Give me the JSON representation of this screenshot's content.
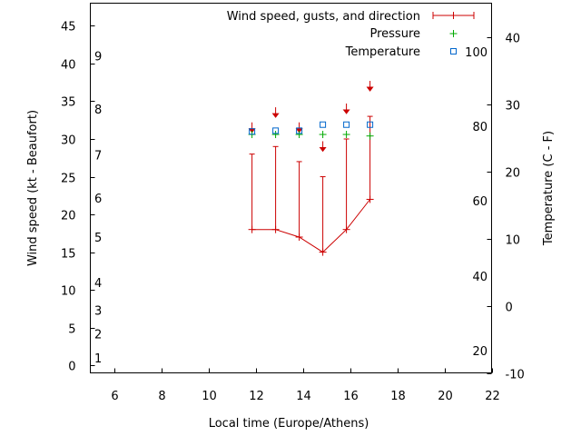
{
  "chart_data": {
    "type": "line",
    "xlabel": "Local time (Europe/Athens)",
    "ylabel": "Wind speed (kt - Beaufort)",
    "y2label": "Temperature (C - F)",
    "xlim": [
      5,
      22
    ],
    "ylim": [
      -1,
      48
    ],
    "y2lim": [
      -10,
      45
    ],
    "x_ticks": [
      6,
      8,
      10,
      12,
      14,
      16,
      18,
      20,
      22
    ],
    "y_ticks": [
      0,
      5,
      10,
      15,
      20,
      25,
      30,
      35,
      40,
      45
    ],
    "y2_ticks": [
      -10,
      0,
      10,
      20,
      30,
      40
    ],
    "beaufort_labels": [
      {
        "label": "1",
        "y": 1.0
      },
      {
        "label": "2",
        "y": 4.2
      },
      {
        "label": "3",
        "y": 7.3
      },
      {
        "label": "4",
        "y": 11.0
      },
      {
        "label": "5",
        "y": 17.0
      },
      {
        "label": "6",
        "y": 22.2
      },
      {
        "label": "7",
        "y": 27.9
      },
      {
        "label": "8",
        "y": 34.0
      },
      {
        "label": "9",
        "y": 41.0
      }
    ],
    "fahrenheit_labels": [
      {
        "label": "20",
        "y2": -6.7
      },
      {
        "label": "40",
        "y2": 4.4
      },
      {
        "label": "60",
        "y2": 15.6
      },
      {
        "label": "80",
        "y2": 26.7
      },
      {
        "label": "100",
        "y2": 37.8
      }
    ],
    "series": [
      {
        "name": "Wind speed, gusts, and direction",
        "color": "#cc0000",
        "x": [
          11.85,
          12.85,
          13.85,
          14.85,
          15.85,
          16.85
        ],
        "speed": [
          18,
          18,
          17,
          15,
          18,
          22
        ],
        "gust": [
          28,
          29,
          27,
          25,
          30,
          33
        ],
        "arrow_y": [
          31,
          33,
          31,
          28.5,
          33.5,
          36.5
        ]
      },
      {
        "name": "Pressure",
        "color": "#00aa00",
        "x": [
          11.85,
          12.85,
          13.85,
          14.85,
          15.85,
          16.85
        ],
        "y": [
          30.6,
          30.6,
          30.6,
          30.6,
          30.6,
          30.4
        ]
      },
      {
        "name": "Temperature",
        "color": "#0066cc",
        "x": [
          11.85,
          12.85,
          13.85,
          14.85,
          15.85,
          16.85
        ],
        "y": [
          31.0,
          31.1,
          31.1,
          31.9,
          31.9,
          31.9
        ]
      }
    ],
    "legend_position": "top-right"
  }
}
